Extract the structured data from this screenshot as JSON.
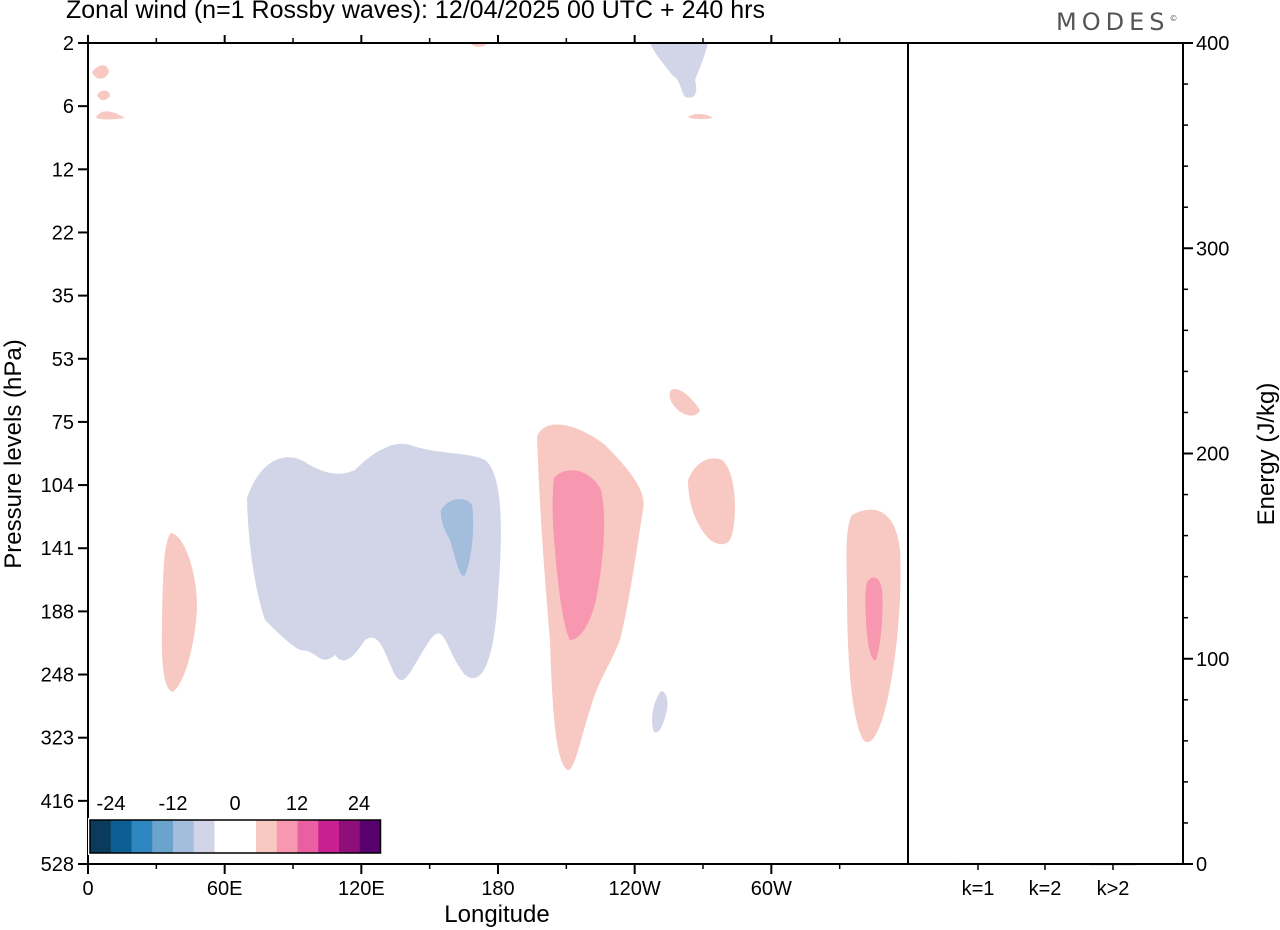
{
  "title": "Zonal wind (n=1 Rossby waves):  12/04/2025  00 UTC  + 240 hrs",
  "logo": "MODES",
  "logo_mark": "©",
  "chart_data": [
    {
      "type": "heatmap",
      "subtype": "longitude-pressure contour",
      "xlabel": "Longitude",
      "ylabel": "Pressure levels (hPa)",
      "x_ticks": [
        "0",
        "60E",
        "120E",
        "180",
        "120W",
        "60W"
      ],
      "x_range_deg": [
        0,
        360
      ],
      "y_ticks": [
        "2",
        "6",
        "12",
        "22",
        "35",
        "53",
        "75",
        "104",
        "141",
        "188",
        "248",
        "323",
        "416",
        "528"
      ],
      "y_scale": "model levels",
      "colorbar": {
        "labels": [
          "-24",
          "-12",
          "0",
          "12",
          "24"
        ],
        "levels": [
          -28,
          -24,
          -20,
          -16,
          -12,
          -8,
          -4,
          4,
          8,
          12,
          16,
          20,
          24,
          28
        ],
        "colors": [
          "#0a3a5c",
          "#0b5f93",
          "#2e86c1",
          "#6aa4cd",
          "#a3bedc",
          "#d2d5e8",
          "#ffffff",
          "#ffffff",
          "#f8c9c2",
          "#f797b0",
          "#ea5fa2",
          "#c82090",
          "#8e0f7a",
          "#57006e"
        ]
      },
      "features": [
        {
          "sign": "+",
          "level": "4-8",
          "lon": [
            34,
            48
          ],
          "plev": [
            141,
            248
          ],
          "color": "#f8c9c2"
        },
        {
          "sign": "-",
          "level": "-8--4",
          "lon": [
            68,
            180
          ],
          "plev": [
            97,
            248
          ],
          "color": "#d2d5e8"
        },
        {
          "sign": "-",
          "level": "-12--8",
          "lon": [
            154,
            169
          ],
          "plev": [
            112,
            170
          ],
          "color": "#a3bedc"
        },
        {
          "sign": "+",
          "level": "4-8",
          "lon": [
            197,
            244
          ],
          "plev": [
            75,
            350
          ],
          "color": "#f8c9c2"
        },
        {
          "sign": "+",
          "level": "8-12",
          "lon": [
            205,
            228
          ],
          "plev": [
            97,
            210
          ],
          "color": "#f797b0"
        },
        {
          "sign": "+",
          "level": "4-8",
          "lon": [
            263,
            285
          ],
          "plev": [
            97,
            141
          ],
          "color": "#f8c9c2"
        },
        {
          "sign": "+",
          "level": "4-8",
          "lon": [
            256,
            269
          ],
          "plev": [
            65,
            75
          ],
          "color": "#f8c9c2"
        },
        {
          "sign": "-",
          "level": "-8--4",
          "lon": [
            248,
            254
          ],
          "plev": [
            270,
            323
          ],
          "color": "#d2d5e8"
        },
        {
          "sign": "+",
          "level": "4-8",
          "lon": [
            332,
            357
          ],
          "plev": [
            115,
            323
          ],
          "color": "#f8c9c2"
        },
        {
          "sign": "+",
          "level": "8-12",
          "lon": [
            342,
            350
          ],
          "plev": [
            160,
            230
          ],
          "color": "#f797b0"
        },
        {
          "sign": "-",
          "level": "-8--4",
          "lon": [
            250,
            271
          ],
          "plev": [
            2,
            4
          ],
          "color": "#d2d5e8"
        },
        {
          "sign": "+",
          "level": "4-8",
          "lon": [
            0,
            16
          ],
          "plev": [
            4,
            6
          ],
          "color": "#f8c9c2"
        }
      ]
    },
    {
      "type": "bar",
      "ylabel": "Energy (J/kg)",
      "categories": [
        "k=1",
        "k=2",
        "k>2"
      ],
      "values": [
        0.5,
        0.3,
        0.2
      ],
      "ylim": [
        0,
        400
      ],
      "y_ticks": [
        "0",
        "100",
        "200",
        "300",
        "400"
      ]
    }
  ]
}
